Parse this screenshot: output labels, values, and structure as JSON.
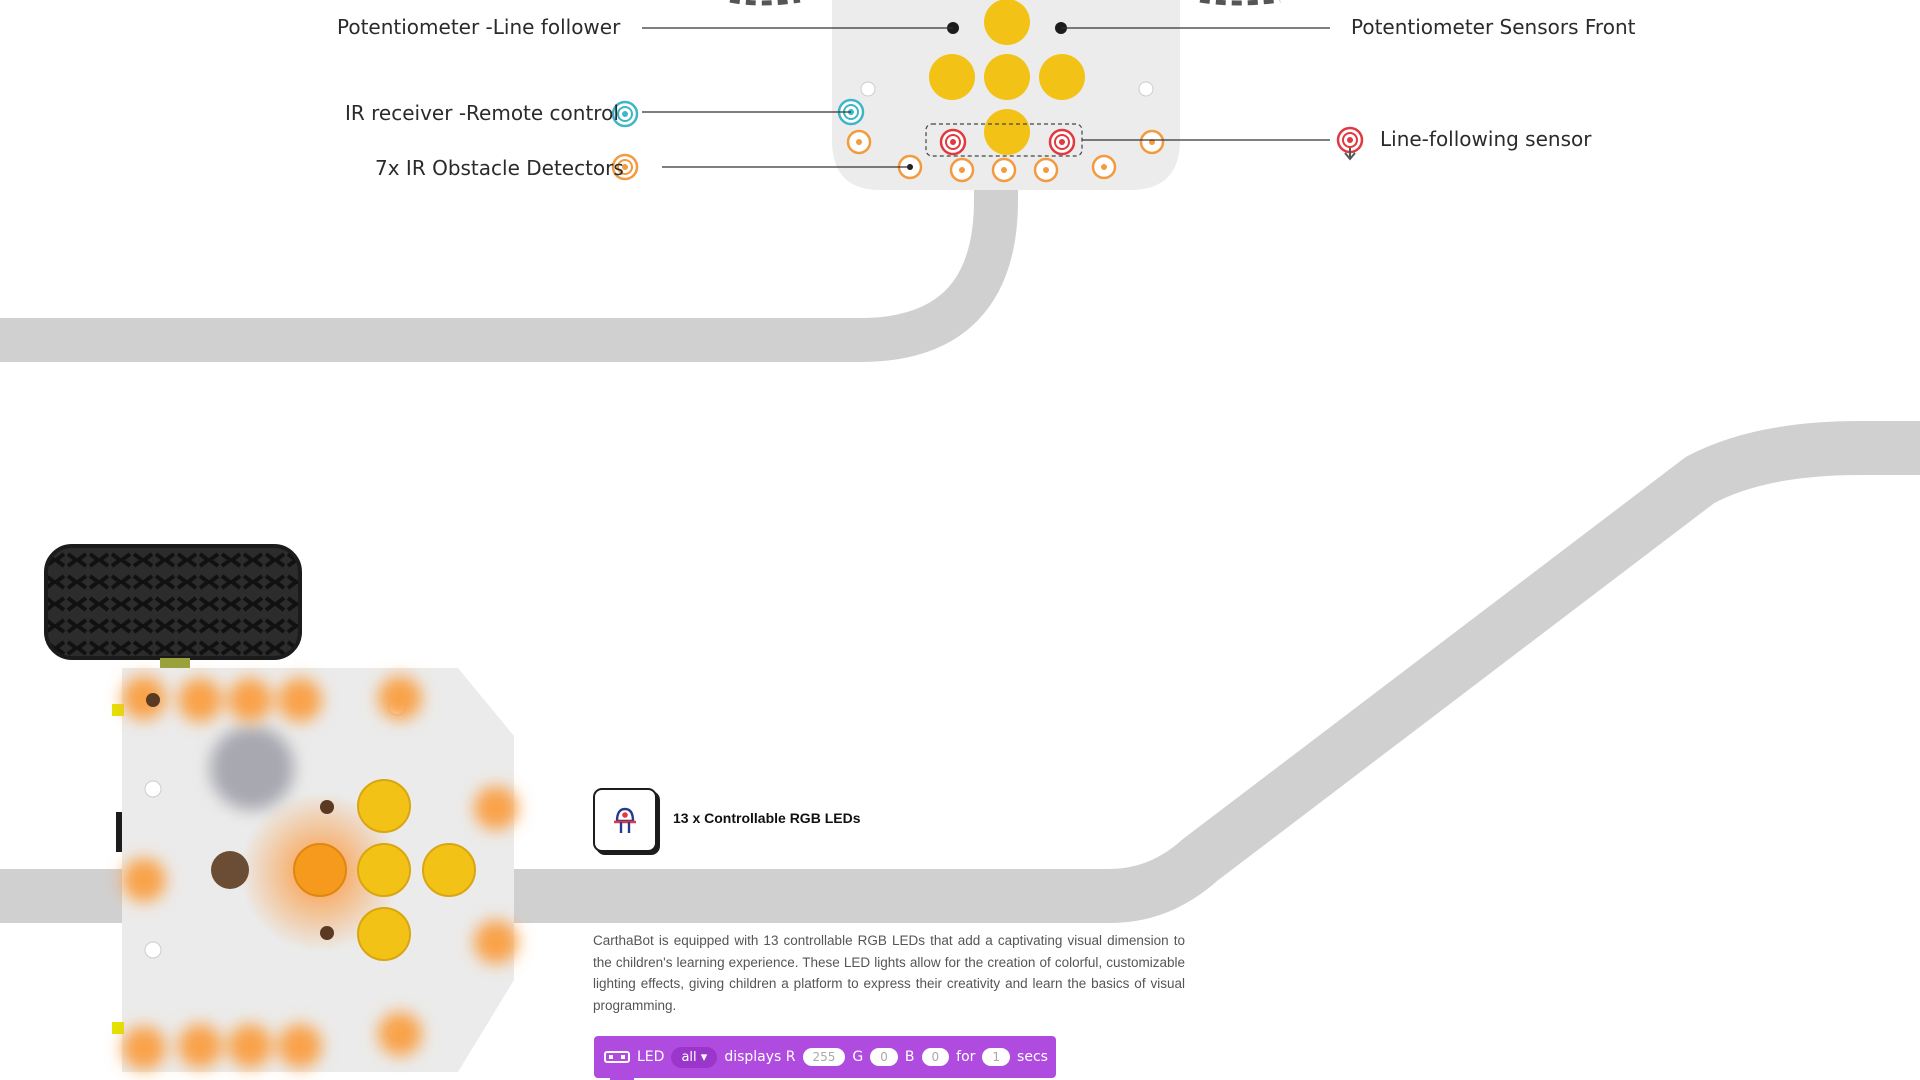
{
  "labels": {
    "pot_line_follower": "Potentiometer -Line follower",
    "pot_sensors_front": "Potentiometer Sensors Front",
    "ir_receiver": "IR receiver -Remote control",
    "ir_obstacle": "7x IR Obstacle Detectors",
    "line_following_sensor": "Line-following sensor"
  },
  "feature": {
    "icon": "led-bulb-icon",
    "title": "13 x Controllable RGB LEDs",
    "description": "CarthaBot is equipped with 13 controllable RGB LEDs that add a captivating visual dimension to the children's learning experience. These LED lights allow for the creation of colorful, customizable lighting effects, giving children a platform to express their creativity and learn the basics of visual programming."
  },
  "code_block": {
    "icon": "led-strip-icon",
    "led_label": "LED",
    "selector_value": "all",
    "displays_label": "displays R",
    "r_value": "255",
    "g_label": "G",
    "g_value": "0",
    "b_label": "B",
    "b_value": "0",
    "for_label": "for",
    "duration_value": "1",
    "secs_label": "secs"
  },
  "colors": {
    "track": "#d0d0d0",
    "led_yellow": "#f2c316",
    "led_orange": "#f9a24a",
    "ir_cyan": "#3fb5c9",
    "sensor_red": "#e0393f",
    "block_purple": "#b04bdf"
  }
}
